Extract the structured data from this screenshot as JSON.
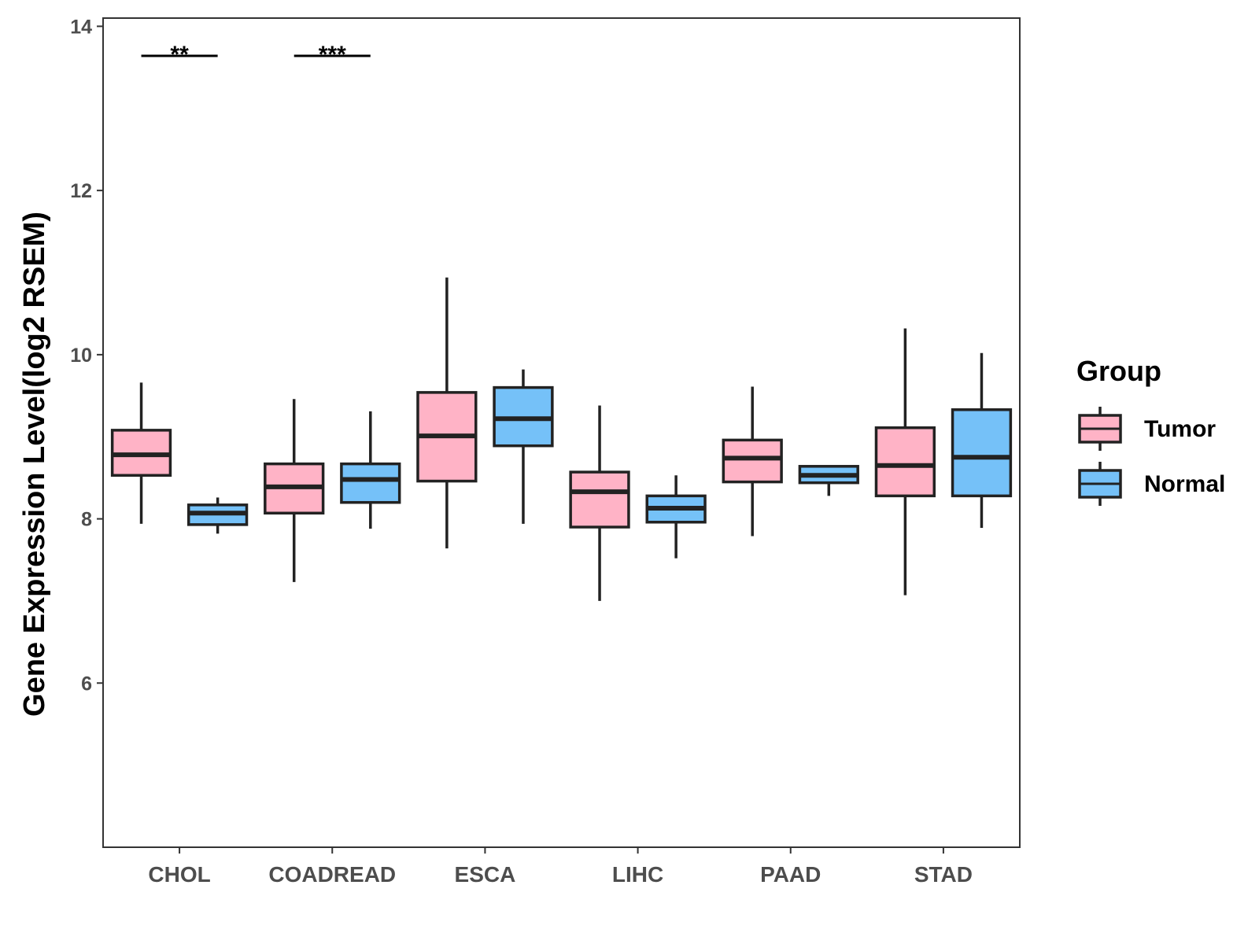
{
  "chart_data": {
    "type": "boxplot",
    "ylabel": "Gene Expression Level(log2 RSEM)",
    "xlabel": "",
    "ylim": [
      4,
      14.1
    ],
    "yticks": [
      6,
      8,
      10,
      12,
      14
    ],
    "categories": [
      "CHOL",
      "COADREAD",
      "ESCA",
      "LIHC",
      "PAAD",
      "STAD"
    ],
    "grid": false,
    "legend": {
      "title": "Group",
      "position": "right",
      "entries": [
        {
          "name": "Tumor",
          "color": "#ffb3c6"
        },
        {
          "name": "Normal",
          "color": "#75c1f8"
        }
      ]
    },
    "series": [
      {
        "name": "Tumor",
        "color": "#ffb3c6",
        "boxes": [
          {
            "whisker_low": 7.94,
            "q1": 8.53,
            "median": 8.78,
            "q3": 9.08,
            "whisker_high": 9.66
          },
          {
            "whisker_low": 7.23,
            "q1": 8.07,
            "median": 8.39,
            "q3": 8.67,
            "whisker_high": 9.46
          },
          {
            "whisker_low": 7.64,
            "q1": 8.46,
            "median": 9.01,
            "q3": 9.54,
            "whisker_high": 10.94
          },
          {
            "whisker_low": 7.0,
            "q1": 7.9,
            "median": 8.33,
            "q3": 8.57,
            "whisker_high": 9.38
          },
          {
            "whisker_low": 7.79,
            "q1": 8.45,
            "median": 8.74,
            "q3": 8.96,
            "whisker_high": 9.61
          },
          {
            "whisker_low": 7.07,
            "q1": 8.28,
            "median": 8.65,
            "q3": 9.11,
            "whisker_high": 10.32
          }
        ]
      },
      {
        "name": "Normal",
        "color": "#75c1f8",
        "boxes": [
          {
            "whisker_low": 7.82,
            "q1": 7.93,
            "median": 8.07,
            "q3": 8.17,
            "whisker_high": 8.26
          },
          {
            "whisker_low": 7.88,
            "q1": 8.2,
            "median": 8.48,
            "q3": 8.67,
            "whisker_high": 9.31
          },
          {
            "whisker_low": 7.94,
            "q1": 8.89,
            "median": 9.22,
            "q3": 9.6,
            "whisker_high": 9.82
          },
          {
            "whisker_low": 7.52,
            "q1": 7.96,
            "median": 8.13,
            "q3": 8.28,
            "whisker_high": 8.53
          },
          {
            "whisker_low": 8.28,
            "q1": 8.44,
            "median": 8.53,
            "q3": 8.64,
            "whisker_high": 8.64
          },
          {
            "whisker_low": 7.89,
            "q1": 8.28,
            "median": 8.75,
            "q3": 9.33,
            "whisker_high": 10.02
          }
        ]
      }
    ],
    "significance": [
      {
        "category": "CHOL",
        "label": "**",
        "y": 13.64
      },
      {
        "category": "COADREAD",
        "label": "***",
        "y": 13.64
      }
    ]
  }
}
